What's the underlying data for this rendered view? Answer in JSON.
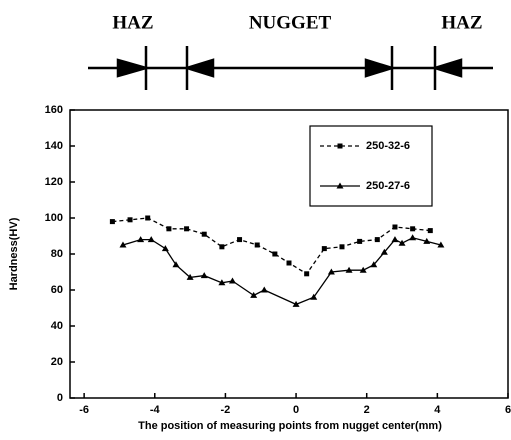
{
  "chart_data": {
    "type": "line",
    "annotations": [
      "HAZ",
      "NUGGET",
      "HAZ"
    ],
    "xlabel": "The position of measuring points from nugget center(mm)",
    "ylabel": "Hardness(HV)",
    "xlim": [
      -6.4,
      6
    ],
    "xticks": [
      -6,
      -4,
      -2,
      0,
      2,
      4,
      6
    ],
    "ylim": [
      0,
      160
    ],
    "yticks": [
      0,
      20,
      40,
      60,
      80,
      100,
      120,
      140,
      160
    ],
    "legend": "upper right",
    "series": [
      {
        "name": "250-32-6",
        "color": "#000000",
        "marker": "square",
        "dashed": true,
        "x": [
          -5.2,
          -4.7,
          -4.2,
          -3.6,
          -3.1,
          -2.6,
          -2.1,
          -1.6,
          -1.1,
          -0.6,
          -0.2,
          0.3,
          0.8,
          1.3,
          1.8,
          2.3,
          2.8,
          3.3,
          3.8
        ],
        "values": [
          98,
          99,
          100,
          94,
          94,
          91,
          84,
          88,
          85,
          80,
          75,
          69,
          83,
          84,
          87,
          88,
          95,
          94,
          93
        ]
      },
      {
        "name": "250-27-6",
        "color": "#000000",
        "marker": "triangle",
        "dashed": false,
        "x": [
          -4.9,
          -4.4,
          -4.1,
          -3.7,
          -3.4,
          -3.0,
          -2.6,
          -2.1,
          -1.8,
          -1.2,
          -0.9,
          0,
          0.5,
          1.0,
          1.5,
          1.9,
          2.2,
          2.5,
          2.8,
          3.0,
          3.3,
          3.7,
          4.1
        ],
        "values": [
          85,
          88,
          88,
          83,
          74,
          67,
          68,
          64,
          65,
          57,
          60,
          52,
          56,
          70,
          71,
          71,
          74,
          81,
          88,
          86,
          89,
          87,
          85
        ]
      }
    ]
  }
}
